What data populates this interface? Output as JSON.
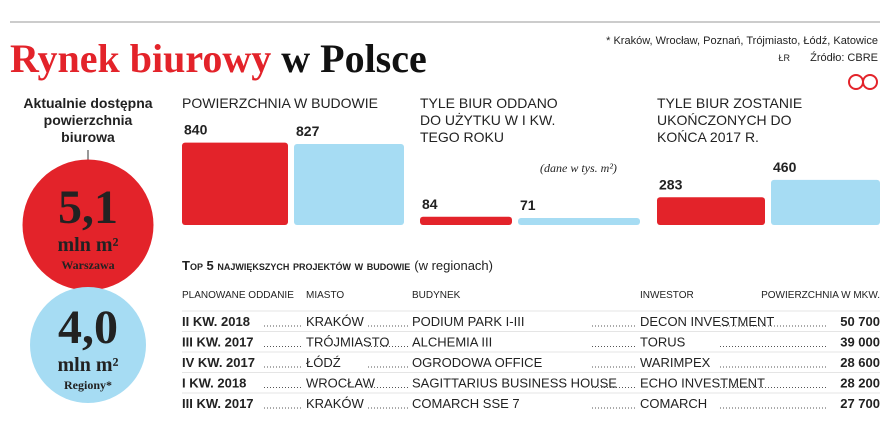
{
  "header": {
    "title_red": "Rynek biurowy",
    "title_black": "w Polsce",
    "note": "* Kraków, Wrocław, Poznań, Trójmiasto, Łódź, Katowice",
    "author": "ŁR",
    "source": "Źródło: CBRE"
  },
  "available": {
    "title": [
      "Aktualnie dostępna",
      "powierzchnia",
      "biurowa"
    ],
    "circles": [
      {
        "value": 5.1,
        "value_label": "5,1",
        "unit": "mln m²",
        "label": "Warszawa",
        "color": "#e3232a"
      },
      {
        "value": 4.0,
        "value_label": "4,0",
        "unit": "mln m²",
        "label": "Regiony*",
        "color": "#a6dcf3"
      }
    ]
  },
  "unit_note": "(dane w tys. m²)",
  "bar_colors": [
    "#e3232a",
    "#a6dcf3"
  ],
  "charts": [
    {
      "title": [
        "POWIERZCHNIA W BUDOWIE"
      ],
      "values": [
        840,
        827
      ]
    },
    {
      "title": [
        "TYLE BIUR ODDANO",
        "DO UŻYTKU W I KW.",
        "TEGO ROKU"
      ],
      "values": [
        84,
        71
      ]
    },
    {
      "title": [
        "TYLE BIUR ZOSTANIE",
        "UKOŃCZONYCH DO",
        "KOŃCA 2017 R."
      ],
      "values": [
        283,
        460
      ]
    }
  ],
  "table": {
    "title": "Top 5 największych projektów w budowie",
    "subtitle": "(w regionach)",
    "columns": [
      "PLANOWANE ODDANIE",
      "MIASTO",
      "BUDYNEK",
      "INWESTOR",
      "POWIERZCHNIA W MKW."
    ],
    "rows": [
      [
        "II KW. 2018",
        "KRAKÓW",
        "PODIUM PARK I-III",
        "DECON INVESTMENT",
        "50 700"
      ],
      [
        "III KW. 2017",
        "TRÓJMIASTO",
        "ALCHEMIA III",
        "TORUS",
        "39 000"
      ],
      [
        "IV KW. 2017",
        "ŁÓDŹ",
        "OGRODOWA OFFICE",
        "WARIMPEX",
        "28 600"
      ],
      [
        "I KW. 2018",
        "WROCŁAW",
        "SAGITTARIUS BUSINESS HOUSE",
        "ECHO INVESTMENT",
        "28 200"
      ],
      [
        "III KW. 2017",
        "KRAKÓW",
        "COMARCH SSE 7",
        "COMARCH",
        "27 700"
      ]
    ]
  }
}
